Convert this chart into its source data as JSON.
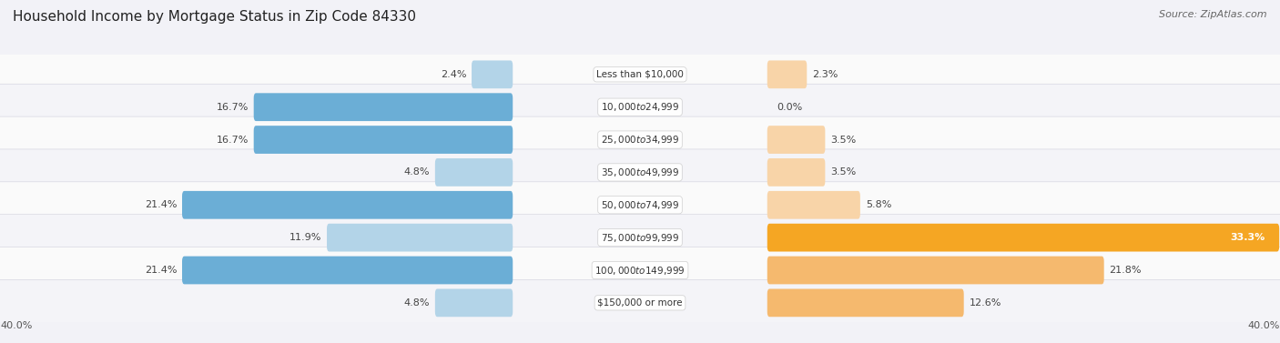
{
  "title": "Household Income by Mortgage Status in Zip Code 84330",
  "source": "Source: ZipAtlas.com",
  "categories": [
    "Less than $10,000",
    "$10,000 to $24,999",
    "$25,000 to $34,999",
    "$35,000 to $49,999",
    "$50,000 to $74,999",
    "$75,000 to $99,999",
    "$100,000 to $149,999",
    "$150,000 or more"
  ],
  "without_mortgage": [
    2.4,
    16.7,
    16.7,
    4.8,
    21.4,
    11.9,
    21.4,
    4.8
  ],
  "with_mortgage": [
    2.3,
    0.0,
    3.5,
    3.5,
    5.8,
    33.3,
    21.8,
    12.6
  ],
  "color_without_dark": "#6baed6",
  "color_without_light": "#b3d4e8",
  "color_with_dark": "#f5a623",
  "color_with_mid": "#f5b96e",
  "color_with_light": "#f8d4a8",
  "axis_limit": 40.0,
  "bg_row_light": "#f4f4f8",
  "bg_row_white": "#fafafa",
  "title_fontsize": 11,
  "source_fontsize": 8,
  "label_fontsize": 8,
  "category_fontsize": 7.5,
  "legend_fontsize": 8.5,
  "axis_label_fontsize": 8
}
